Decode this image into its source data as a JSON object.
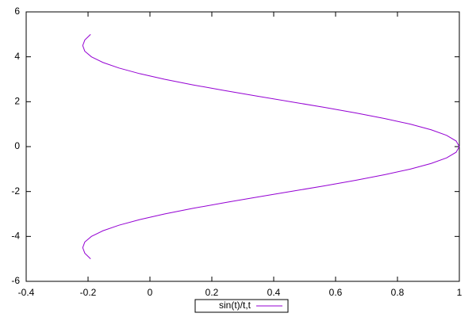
{
  "chart_data": {
    "type": "line",
    "x": [
      -0.1918,
      -0.2104,
      -0.2172,
      -0.2106,
      -0.1892,
      -0.1524,
      -0.1002,
      -0.0333,
      0.047,
      0.1388,
      0.2394,
      0.3458,
      0.4546,
      0.5623,
      0.665,
      0.7592,
      0.8415,
      0.9089,
      0.9589,
      0.9896,
      1,
      0.9896,
      0.9589,
      0.9089,
      0.8415,
      0.7592,
      0.665,
      0.5623,
      0.4546,
      0.3458,
      0.2394,
      0.1388,
      0.047,
      -0.0333,
      -0.1002,
      -0.1524,
      -0.1892,
      -0.2106,
      -0.2172,
      -0.2104,
      -0.1918
    ],
    "series": [
      {
        "name": "sin(t)/t,t",
        "color": "#9400d3",
        "values": [
          -5,
          -4.75,
          -4.5,
          -4.25,
          -4,
          -3.75,
          -3.5,
          -3.25,
          -3,
          -2.75,
          -2.5,
          -2.25,
          -2,
          -1.75,
          -1.5,
          -1.25,
          -1,
          -0.75,
          -0.5,
          -0.25,
          0,
          0.25,
          0.5,
          0.75,
          1,
          1.25,
          1.5,
          1.75,
          2,
          2.25,
          2.5,
          2.75,
          3,
          3.25,
          3.5,
          3.75,
          4,
          4.25,
          4.5,
          4.75,
          5
        ]
      }
    ],
    "xlim": [
      -0.4,
      1
    ],
    "xticks": [
      -0.4,
      -0.2,
      0,
      0.2,
      0.4,
      0.6,
      0.8,
      1
    ],
    "ylim": [
      -6,
      6
    ],
    "yticks": [
      -6,
      -4,
      -2,
      0,
      2,
      4,
      6
    ],
    "grid": false,
    "legend": "bottom"
  }
}
